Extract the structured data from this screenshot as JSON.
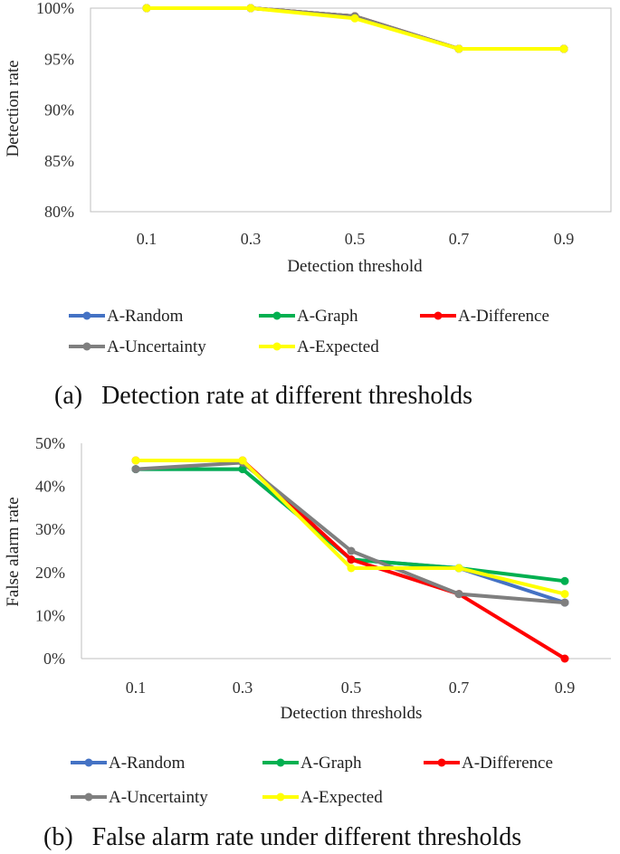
{
  "chart_data": [
    {
      "type": "line",
      "caption": "(a)   Detection rate at different thresholds",
      "xlabel": "Detection  threshold",
      "ylabel": "Detection  rate",
      "categories": [
        "0.1",
        "0.3",
        "0.5",
        "0.7",
        "0.9"
      ],
      "yticks": [
        "80%",
        "85%",
        "90%",
        "95%",
        "100%"
      ],
      "ylim": [
        80,
        100
      ],
      "series": [
        {
          "name": "A-Random",
          "color": "#4472C4",
          "values": [
            100,
            100,
            99.2,
            96,
            96
          ]
        },
        {
          "name": "A-Graph",
          "color": "#00B050",
          "values": [
            100,
            100,
            99.2,
            96,
            96
          ]
        },
        {
          "name": "A-Difference",
          "color": "#FF0000",
          "values": [
            100,
            100,
            99.2,
            96,
            96
          ]
        },
        {
          "name": "A-Uncertainty",
          "color": "#7F7F7F",
          "values": [
            100,
            100,
            99.2,
            96,
            96
          ]
        },
        {
          "name": "A-Expected",
          "color": "#FFFF00",
          "values": [
            100,
            100,
            99.0,
            96,
            96
          ]
        }
      ]
    },
    {
      "type": "line",
      "caption": "(b)   False alarm rate under different thresholds",
      "xlabel": "Detection thresholds",
      "ylabel": "False alarm rate",
      "categories": [
        "0.1",
        "0.3",
        "0.5",
        "0.7",
        "0.9"
      ],
      "yticks": [
        "0%",
        "10%",
        "20%",
        "30%",
        "40%",
        "50%"
      ],
      "ylim": [
        0,
        50
      ],
      "series": [
        {
          "name": "A-Random",
          "color": "#4472C4",
          "values": [
            44,
            44,
            23,
            21,
            13
          ]
        },
        {
          "name": "A-Graph",
          "color": "#00B050",
          "values": [
            44,
            44,
            23,
            21,
            18
          ]
        },
        {
          "name": "A-Difference",
          "color": "#FF0000",
          "values": [
            46,
            46,
            23,
            15,
            0
          ]
        },
        {
          "name": "A-Uncertainty",
          "color": "#7F7F7F",
          "values": [
            44,
            45.5,
            25,
            15,
            13
          ]
        },
        {
          "name": "A-Expected",
          "color": "#FFFF00",
          "values": [
            46,
            46,
            21,
            21,
            15
          ]
        }
      ]
    }
  ]
}
